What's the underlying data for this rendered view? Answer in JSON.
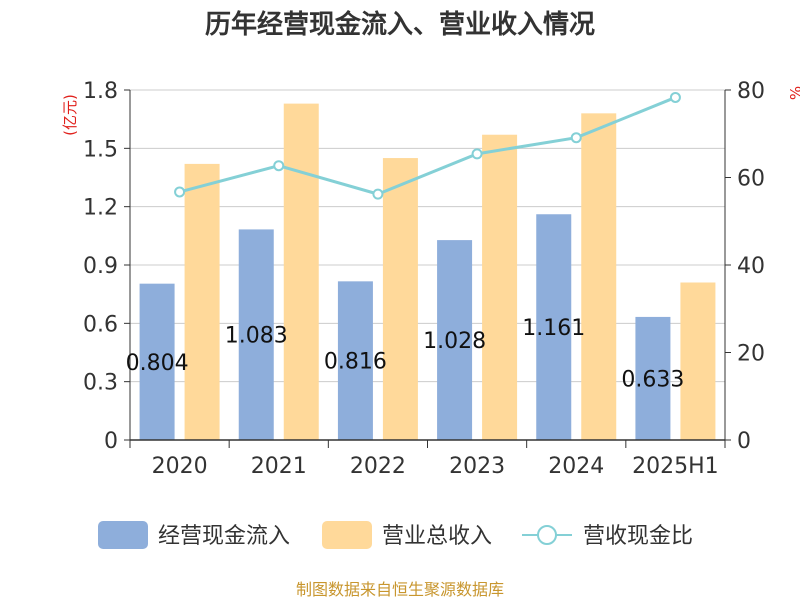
{
  "chart_data": {
    "type": "bar",
    "title": "历年经营现金流入、营业收入情况",
    "categories": [
      "2020",
      "2021",
      "2022",
      "2023",
      "2024",
      "2025H1"
    ],
    "left_axis": {
      "unit_label": "(亿元)",
      "ylim": [
        0,
        1.8
      ],
      "ticks": [
        "0",
        "0.3",
        "0.6",
        "0.9",
        "1.2",
        "1.5",
        "1.8"
      ],
      "tick_values": [
        0,
        0.3,
        0.6,
        0.9,
        1.2,
        1.5,
        1.8
      ]
    },
    "right_axis": {
      "unit_label": "%",
      "ylim": [
        0,
        80
      ],
      "ticks": [
        "0",
        "20",
        "40",
        "60",
        "80"
      ],
      "tick_values": [
        0,
        20,
        40,
        60,
        80
      ]
    },
    "series": [
      {
        "name": "经营现金流入",
        "type": "bar",
        "axis": "left",
        "color": "#8eaedb",
        "values": [
          0.804,
          1.083,
          0.816,
          1.028,
          1.161,
          0.633
        ],
        "labels": [
          "0.804",
          "1.083",
          "0.816",
          "1.028",
          "1.161",
          "0.633"
        ]
      },
      {
        "name": "营业总收入",
        "type": "bar",
        "axis": "left",
        "color": "#ffd99a",
        "values": [
          1.42,
          1.73,
          1.45,
          1.57,
          1.68,
          0.81
        ]
      },
      {
        "name": "营收现金比",
        "type": "line",
        "axis": "right",
        "color": "#84d0d6",
        "values": [
          56.7,
          62.7,
          56.2,
          65.4,
          69.1,
          78.3
        ]
      }
    ],
    "grid": true,
    "legend_position": "bottom"
  },
  "source_note": "制图数据来自恒生聚源数据库"
}
